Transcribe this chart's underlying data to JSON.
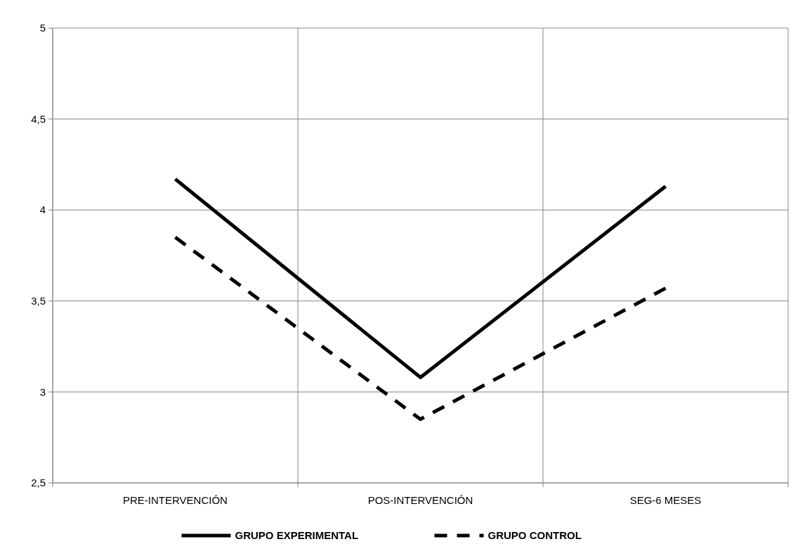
{
  "chart_data": {
    "type": "line",
    "categories": [
      "PRE-INTERVENCIÓN",
      "POS-INTERVENCIÓN",
      "SEG-6 MESES"
    ],
    "series": [
      {
        "name": "GRUPO EXPERIMENTAL",
        "color": "#000000",
        "values": [
          4.17,
          3.08,
          4.13
        ],
        "line_style": "solid"
      },
      {
        "name": "GRUPO CONTROL",
        "color": "#000000",
        "values": [
          3.85,
          2.85,
          3.57
        ],
        "line_style": "dashed"
      }
    ],
    "ylim": [
      2.5,
      5
    ],
    "yticks": [
      {
        "value": 2.5,
        "label": "2,5"
      },
      {
        "value": 3,
        "label": "3"
      },
      {
        "value": 3.5,
        "label": "3,5"
      },
      {
        "value": 4,
        "label": "4"
      },
      {
        "value": 4.5,
        "label": "4,5"
      },
      {
        "value": 5,
        "label": "5"
      }
    ],
    "grid": true,
    "legend": "bottom"
  }
}
